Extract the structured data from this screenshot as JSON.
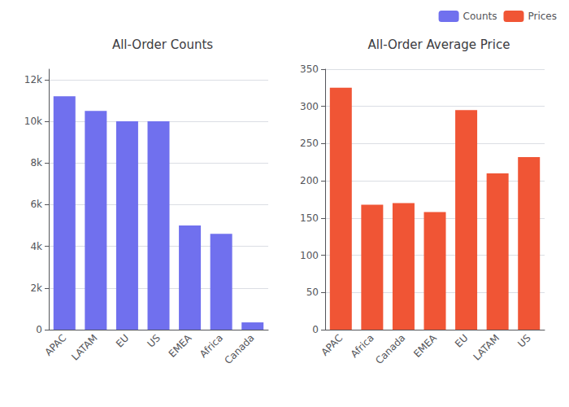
{
  "chart_data": [
    {
      "type": "bar",
      "title": "All-Order Counts",
      "categories": [
        "APAC",
        "LATAM",
        "EU",
        "US",
        "EMEA",
        "Africa",
        "Canada"
      ],
      "series": [
        {
          "name": "Counts",
          "color": "#7070ee",
          "values": [
            11200,
            10500,
            10000,
            10000,
            5000,
            4600,
            350
          ]
        }
      ],
      "ylim": [
        0,
        12500
      ],
      "yticks": [
        0,
        {
          "value": 2000,
          "label": "2k"
        },
        {
          "value": 4000,
          "label": "4k"
        },
        {
          "value": 6000,
          "label": "6k"
        },
        {
          "value": 8000,
          "label": "8k"
        },
        {
          "value": 10000,
          "label": "10k"
        },
        {
          "value": 12000,
          "label": "12k"
        }
      ],
      "grid": true,
      "legend": "upper right"
    },
    {
      "type": "bar",
      "title": "All-Order Average Price",
      "categories": [
        "APAC",
        "Africa",
        "Canada",
        "EMEA",
        "EU",
        "LATAM",
        "US"
      ],
      "series": [
        {
          "name": "Prices",
          "color": "#f05535",
          "values": [
            325,
            168,
            170,
            158,
            295,
            210,
            232
          ]
        }
      ],
      "ylim": [
        0,
        350
      ],
      "yticks": [
        0,
        50,
        100,
        150,
        200,
        250,
        300,
        350
      ],
      "grid": true,
      "legend": "upper right"
    }
  ]
}
